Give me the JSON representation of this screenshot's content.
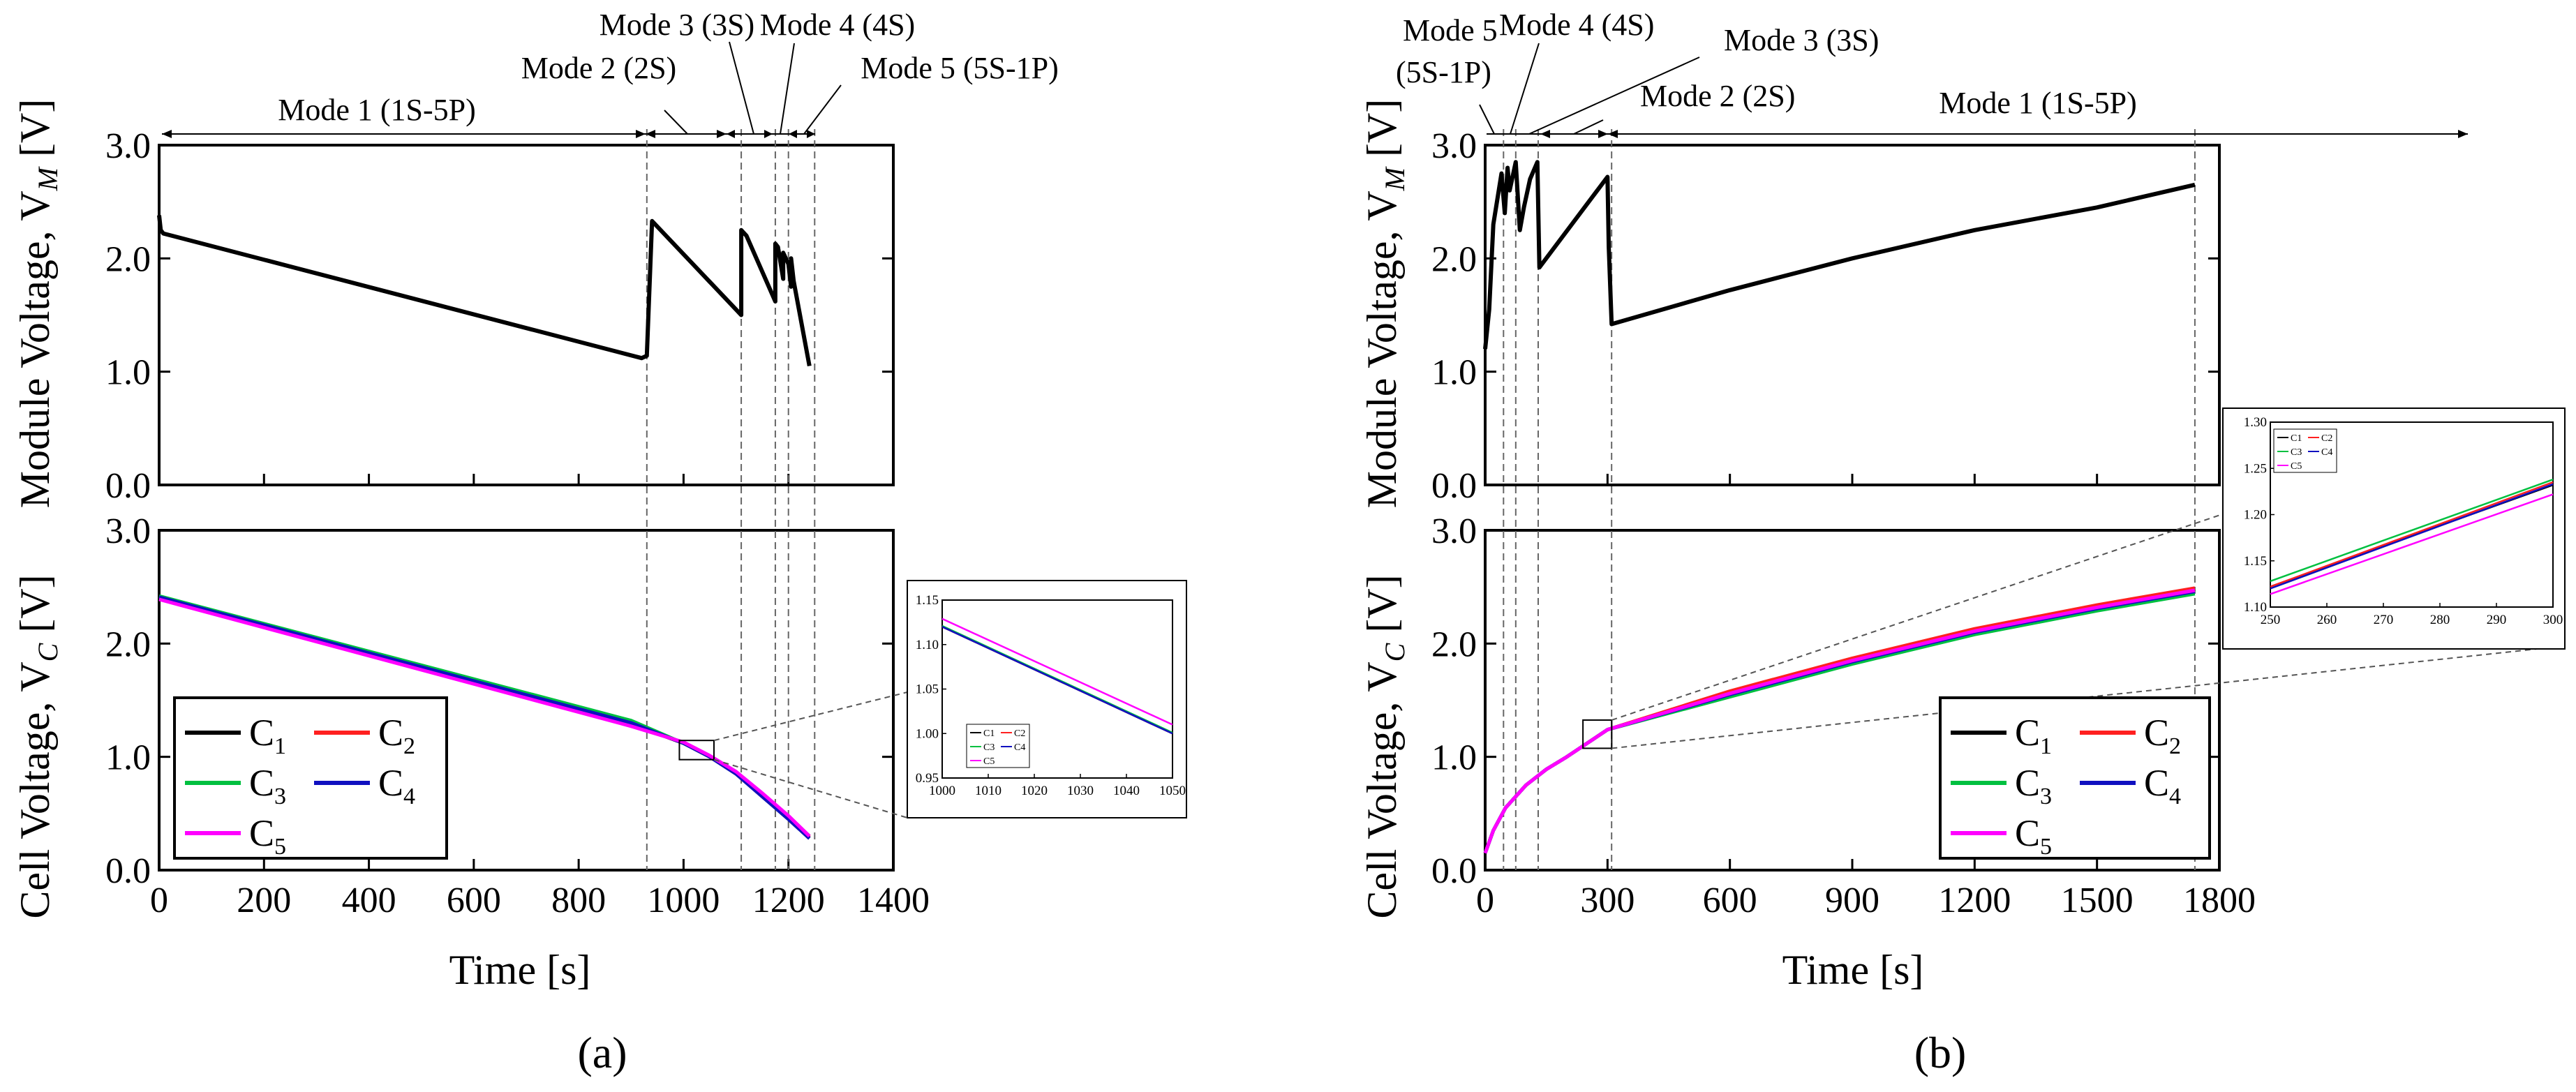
{
  "figure": {
    "shared_ylabel_module": "Module Voltage, V",
    "shared_ylabel_module_sub": "M",
    "shared_ylabel_module_unit": " [V]",
    "shared_ylabel_cell": "Cell Voltage, V",
    "shared_ylabel_cell_sub": "C",
    "shared_ylabel_cell_unit": " [V]"
  },
  "colors": {
    "C1": "#000000",
    "C2": "#ff2020",
    "C3": "#00c040",
    "C4": "#1010c0",
    "C5": "#ff00ff"
  },
  "chart_data": [
    {
      "panel": "a",
      "panel_label": "(a)",
      "type": "line",
      "xlabel": "Time [s]",
      "xlim": [
        0,
        1400
      ],
      "xticks": [
        0,
        200,
        400,
        600,
        800,
        1000,
        1200,
        1400
      ],
      "module": {
        "ylim": [
          0,
          3
        ],
        "yticks": [
          "0.0",
          "1.0",
          "2.0",
          "3.0"
        ],
        "series": [
          {
            "name": "V_M",
            "x": [
              0,
              3,
              8,
              920,
              930,
              940,
              1110,
              1110,
              1120,
              1175,
              1175,
              1180,
              1190,
              1190,
              1200,
              1205,
              1205,
              1210,
              1240
            ],
            "y": [
              2.38,
              2.25,
              2.22,
              1.12,
              1.14,
              2.33,
              1.5,
              2.25,
              2.2,
              1.62,
              2.13,
              2.1,
              1.82,
              2.05,
              1.95,
              1.75,
              2.0,
              1.8,
              1.05
            ]
          }
        ]
      },
      "cell": {
        "ylim": [
          0,
          3
        ],
        "yticks": [
          "0.0",
          "1.0",
          "2.0",
          "3.0"
        ],
        "legend": [
          "C1",
          "C2",
          "C3",
          "C4",
          "C5"
        ],
        "legend_sub": [
          "1",
          "2",
          "3",
          "4",
          "5"
        ],
        "series": [
          {
            "name": "C1",
            "x": [
              0,
              900,
              1000,
              1050,
              1100,
              1150,
              1200,
              1240
            ],
            "y": [
              2.4,
              1.29,
              1.12,
              1.0,
              0.85,
              0.65,
              0.45,
              0.28
            ]
          },
          {
            "name": "C2",
            "x": [
              0,
              900,
              1000,
              1050,
              1100,
              1150,
              1200,
              1240
            ],
            "y": [
              2.41,
              1.3,
              1.12,
              1.0,
              0.86,
              0.66,
              0.46,
              0.29
            ]
          },
          {
            "name": "C3",
            "x": [
              0,
              900,
              1000,
              1050,
              1100,
              1150,
              1200,
              1240
            ],
            "y": [
              2.42,
              1.32,
              1.12,
              1.0,
              0.86,
              0.67,
              0.47,
              0.3
            ]
          },
          {
            "name": "C4",
            "x": [
              0,
              900,
              1000,
              1050,
              1100,
              1150,
              1200,
              1240
            ],
            "y": [
              2.41,
              1.3,
              1.12,
              1.0,
              0.85,
              0.65,
              0.45,
              0.28
            ]
          },
          {
            "name": "C5",
            "x": [
              0,
              900,
              1000,
              1050,
              1100,
              1150,
              1200,
              1240
            ],
            "y": [
              2.39,
              1.27,
              1.13,
              1.01,
              0.87,
              0.68,
              0.48,
              0.3
            ]
          }
        ],
        "zoom_box": {
          "x": [
            1000,
            1050
          ],
          "y": [
            1.0,
            1.12
          ]
        }
      },
      "mode_labels": [
        "Mode 1 (1S-5P)",
        "Mode 2 (2S)",
        "Mode 3 (3S)",
        "Mode 4 (4S)",
        "Mode 5 (5S-1P)"
      ],
      "mode_boundaries": [
        930,
        1110,
        1175,
        1200,
        1250
      ],
      "inset": {
        "xlim": [
          1000,
          1050
        ],
        "ylim": [
          0.95,
          1.15
        ],
        "xticks": [
          "1000",
          "1010",
          "1020",
          "1030",
          "1040",
          "1050"
        ],
        "yticks": [
          "0.95",
          "1.00",
          "1.05",
          "1.10",
          "1.15"
        ],
        "legend": [
          "C1",
          "C2",
          "C3",
          "C4",
          "C5"
        ],
        "series": [
          {
            "name": "C1",
            "x": [
              1000,
              1050
            ],
            "y": [
              1.12,
              1.0
            ]
          },
          {
            "name": "C2",
            "x": [
              1000,
              1050
            ],
            "y": [
              1.12,
              1.0
            ]
          },
          {
            "name": "C3",
            "x": [
              1000,
              1050
            ],
            "y": [
              1.121,
              1.001
            ]
          },
          {
            "name": "C4",
            "x": [
              1000,
              1050
            ],
            "y": [
              1.12,
              1.0
            ]
          },
          {
            "name": "C5",
            "x": [
              1000,
              1050
            ],
            "y": [
              1.129,
              1.01
            ]
          }
        ]
      }
    },
    {
      "panel": "b",
      "panel_label": "(b)",
      "type": "line",
      "xlabel": "Time [s]",
      "xlim": [
        0,
        1800
      ],
      "xticks": [
        0,
        300,
        600,
        900,
        1200,
        1500,
        1800
      ],
      "module": {
        "ylim": [
          0,
          3
        ],
        "yticks": [
          "0.0",
          "1.0",
          "2.0",
          "3.0"
        ],
        "series": [
          {
            "name": "V_M",
            "x": [
              0,
              10,
              20,
              40,
              48,
              55,
              60,
              75,
              85,
              95,
              110,
              128,
              133,
              300,
              303,
              310,
              600,
              900,
              1200,
              1500,
              1740
            ],
            "y": [
              1.2,
              1.55,
              2.3,
              2.75,
              2.4,
              2.8,
              2.6,
              2.85,
              2.25,
              2.45,
              2.7,
              2.85,
              1.92,
              2.72,
              2.1,
              1.42,
              1.72,
              2.0,
              2.25,
              2.45,
              2.65
            ]
          }
        ]
      },
      "cell": {
        "ylim": [
          0,
          3
        ],
        "yticks": [
          "0.0",
          "1.0",
          "2.0",
          "3.0"
        ],
        "legend": [
          "C1",
          "C2",
          "C3",
          "C4",
          "C5"
        ],
        "legend_sub": [
          "1",
          "2",
          "3",
          "4",
          "5"
        ],
        "series": [
          {
            "name": "C1",
            "x": [
              0,
              20,
              50,
              100,
              150,
              200,
              250,
              300,
              600,
              900,
              1200,
              1500,
              1740
            ],
            "y": [
              0.15,
              0.35,
              0.55,
              0.75,
              0.89,
              1.0,
              1.12,
              1.24,
              1.57,
              1.86,
              2.12,
              2.33,
              2.48
            ]
          },
          {
            "name": "C2",
            "x": [
              0,
              20,
              50,
              100,
              150,
              200,
              250,
              300,
              600,
              900,
              1200,
              1500,
              1740
            ],
            "y": [
              0.15,
              0.35,
              0.55,
              0.75,
              0.89,
              1.0,
              1.12,
              1.24,
              1.58,
              1.87,
              2.13,
              2.34,
              2.49
            ]
          },
          {
            "name": "C3",
            "x": [
              0,
              20,
              50,
              100,
              150,
              200,
              250,
              300,
              600,
              900,
              1200,
              1500,
              1740
            ],
            "y": [
              0.15,
              0.35,
              0.55,
              0.75,
              0.89,
              1.0,
              1.12,
              1.24,
              1.53,
              1.82,
              2.08,
              2.29,
              2.44
            ]
          },
          {
            "name": "C4",
            "x": [
              0,
              20,
              50,
              100,
              150,
              200,
              250,
              300,
              600,
              900,
              1200,
              1500,
              1740
            ],
            "y": [
              0.15,
              0.35,
              0.55,
              0.75,
              0.89,
              1.0,
              1.12,
              1.24,
              1.55,
              1.84,
              2.1,
              2.31,
              2.46
            ]
          },
          {
            "name": "C5",
            "x": [
              0,
              20,
              50,
              100,
              150,
              200,
              250,
              300,
              600,
              900,
              1200,
              1500,
              1740
            ],
            "y": [
              0.15,
              0.35,
              0.55,
              0.75,
              0.89,
              1.0,
              1.12,
              1.24,
              1.56,
              1.85,
              2.11,
              2.32,
              2.47
            ]
          }
        ],
        "zoom_box": {
          "x": [
            250,
            300
          ],
          "y": [
            1.1,
            1.3
          ]
        }
      },
      "mode_labels": [
        "Mode 5",
        "(5S-1P)",
        "Mode 4 (4S)",
        "Mode 3 (3S)",
        "Mode 2 (2S)",
        "Mode 1 (1S-5P)"
      ],
      "mode_boundaries": [
        45,
        75,
        130,
        310,
        1740
      ],
      "inset": {
        "xlim": [
          250,
          300
        ],
        "ylim": [
          1.1,
          1.3
        ],
        "xticks": [
          "250",
          "260",
          "270",
          "280",
          "290",
          "300"
        ],
        "yticks": [
          "1.10",
          "1.15",
          "1.20",
          "1.25",
          "1.30"
        ],
        "legend": [
          "C1",
          "C2",
          "C3",
          "C4",
          "C5"
        ],
        "series": [
          {
            "name": "C1",
            "x": [
              250,
              300
            ],
            "y": [
              1.122,
              1.232
            ]
          },
          {
            "name": "C2",
            "x": [
              250,
              300
            ],
            "y": [
              1.122,
              1.235
            ]
          },
          {
            "name": "C3",
            "x": [
              250,
              300
            ],
            "y": [
              1.128,
              1.238
            ]
          },
          {
            "name": "C4",
            "x": [
              250,
              300
            ],
            "y": [
              1.12,
              1.233
            ]
          },
          {
            "name": "C5",
            "x": [
              250,
              300
            ],
            "y": [
              1.114,
              1.222
            ]
          }
        ]
      }
    }
  ]
}
